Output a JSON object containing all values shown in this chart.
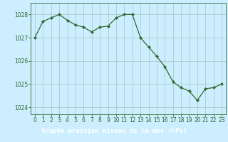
{
  "x": [
    0,
    1,
    2,
    3,
    4,
    5,
    6,
    7,
    8,
    9,
    10,
    11,
    12,
    13,
    14,
    15,
    16,
    17,
    18,
    19,
    20,
    21,
    22,
    23
  ],
  "y": [
    1027.0,
    1027.7,
    1027.85,
    1028.0,
    1027.75,
    1027.55,
    1027.45,
    1027.25,
    1027.45,
    1027.5,
    1027.85,
    1028.0,
    1028.0,
    1027.0,
    1026.6,
    1026.2,
    1025.75,
    1025.1,
    1024.85,
    1024.7,
    1024.3,
    1024.8,
    1024.85,
    1025.0
  ],
  "line_color": "#2d6a2d",
  "marker_color": "#2d6a2d",
  "bg_color": "#cceeff",
  "plot_bg_color": "#cceeff",
  "grid_color": "#aacccc",
  "label_bg_color": "#2d6a2d",
  "label_fg_color": "#ffffff",
  "ylabel_text": "Graphe pression niveau de la mer (hPa)",
  "yticks": [
    1024,
    1025,
    1026,
    1027,
    1028
  ],
  "ylim": [
    1023.7,
    1028.5
  ],
  "xlim": [
    -0.5,
    23.5
  ],
  "xticks": [
    0,
    1,
    2,
    3,
    4,
    5,
    6,
    7,
    8,
    9,
    10,
    11,
    12,
    13,
    14,
    15,
    16,
    17,
    18,
    19,
    20,
    21,
    22,
    23
  ],
  "tick_color": "#2d6a2d",
  "tick_fontsize": 5.5,
  "label_fontsize": 6.5,
  "label_fontweight": "bold"
}
